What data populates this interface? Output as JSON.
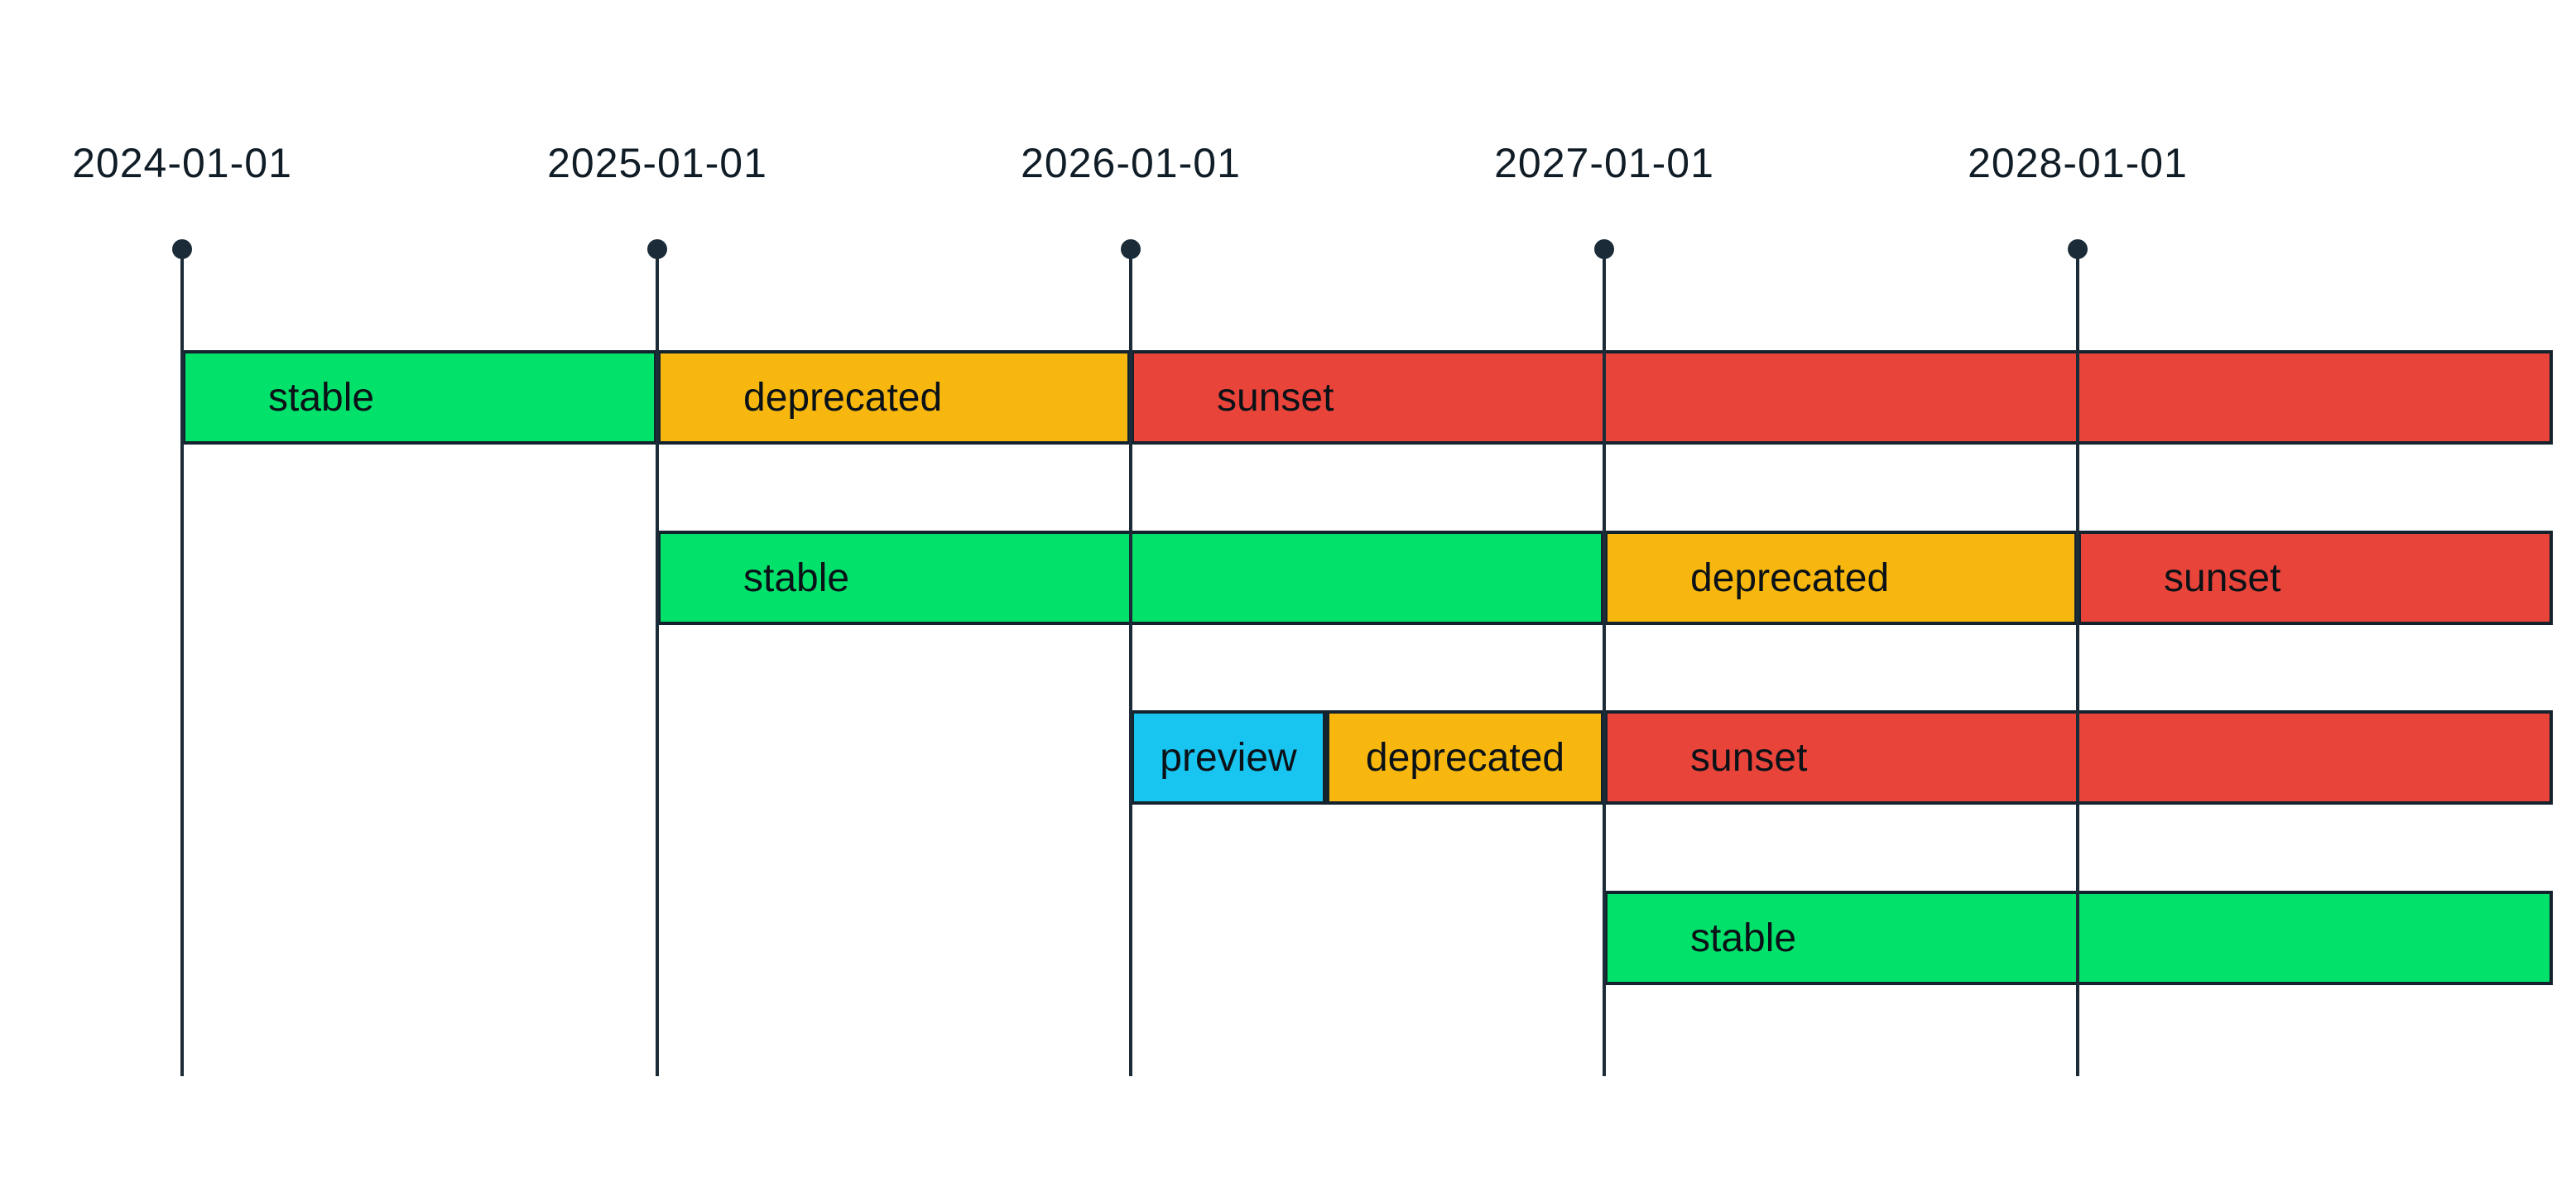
{
  "page": {
    "background": "#ffffff"
  },
  "colors": {
    "axis_line": "#1b2c38",
    "segment_border": "#13222c",
    "tick_label_text": "#101d27",
    "segment_label_text": "#0b1217"
  },
  "chart_data": {
    "type": "bar",
    "variant": "timeline-gantt-lifecycle",
    "title": "",
    "xlabel": "",
    "ylabel": "",
    "legend": "none",
    "grid": true,
    "axis": {
      "start": "2024-01-01",
      "end": "2029-01-01",
      "tick_labels": [
        "2024-01-01",
        "2025-01-01",
        "2026-01-01",
        "2027-01-01",
        "2028-01-01"
      ]
    },
    "status_colors": {
      "stable": "#02e26b",
      "deprecated": "#f7b70f",
      "sunset": "#e9443a",
      "preview": "#18c5f1"
    },
    "rows": [
      {
        "segments": [
          {
            "label": "stable",
            "status": "stable",
            "start": "2024-01-01",
            "end": "2025-01-01"
          },
          {
            "label": "deprecated",
            "status": "deprecated",
            "start": "2025-01-01",
            "end": "2026-01-01"
          },
          {
            "label": "sunset",
            "status": "sunset",
            "start": "2026-01-01",
            "end": "2029-01-01"
          }
        ]
      },
      {
        "segments": [
          {
            "label": "stable",
            "status": "stable",
            "start": "2025-01-01",
            "end": "2027-01-01"
          },
          {
            "label": "deprecated",
            "status": "deprecated",
            "start": "2027-01-01",
            "end": "2028-01-01"
          },
          {
            "label": "sunset",
            "status": "sunset",
            "start": "2028-01-01",
            "end": "2029-01-01"
          }
        ]
      },
      {
        "segments": [
          {
            "label": "preview",
            "status": "preview",
            "start": "2026-01-01",
            "end": "2026-06-01"
          },
          {
            "label": "deprecated",
            "status": "deprecated",
            "start": "2026-06-01",
            "end": "2027-01-01"
          },
          {
            "label": "sunset",
            "status": "sunset",
            "start": "2027-01-01",
            "end": "2029-01-01"
          }
        ]
      },
      {
        "segments": [
          {
            "label": "stable",
            "status": "stable",
            "start": "2027-01-01",
            "end": "2029-01-01"
          }
        ]
      }
    ]
  }
}
